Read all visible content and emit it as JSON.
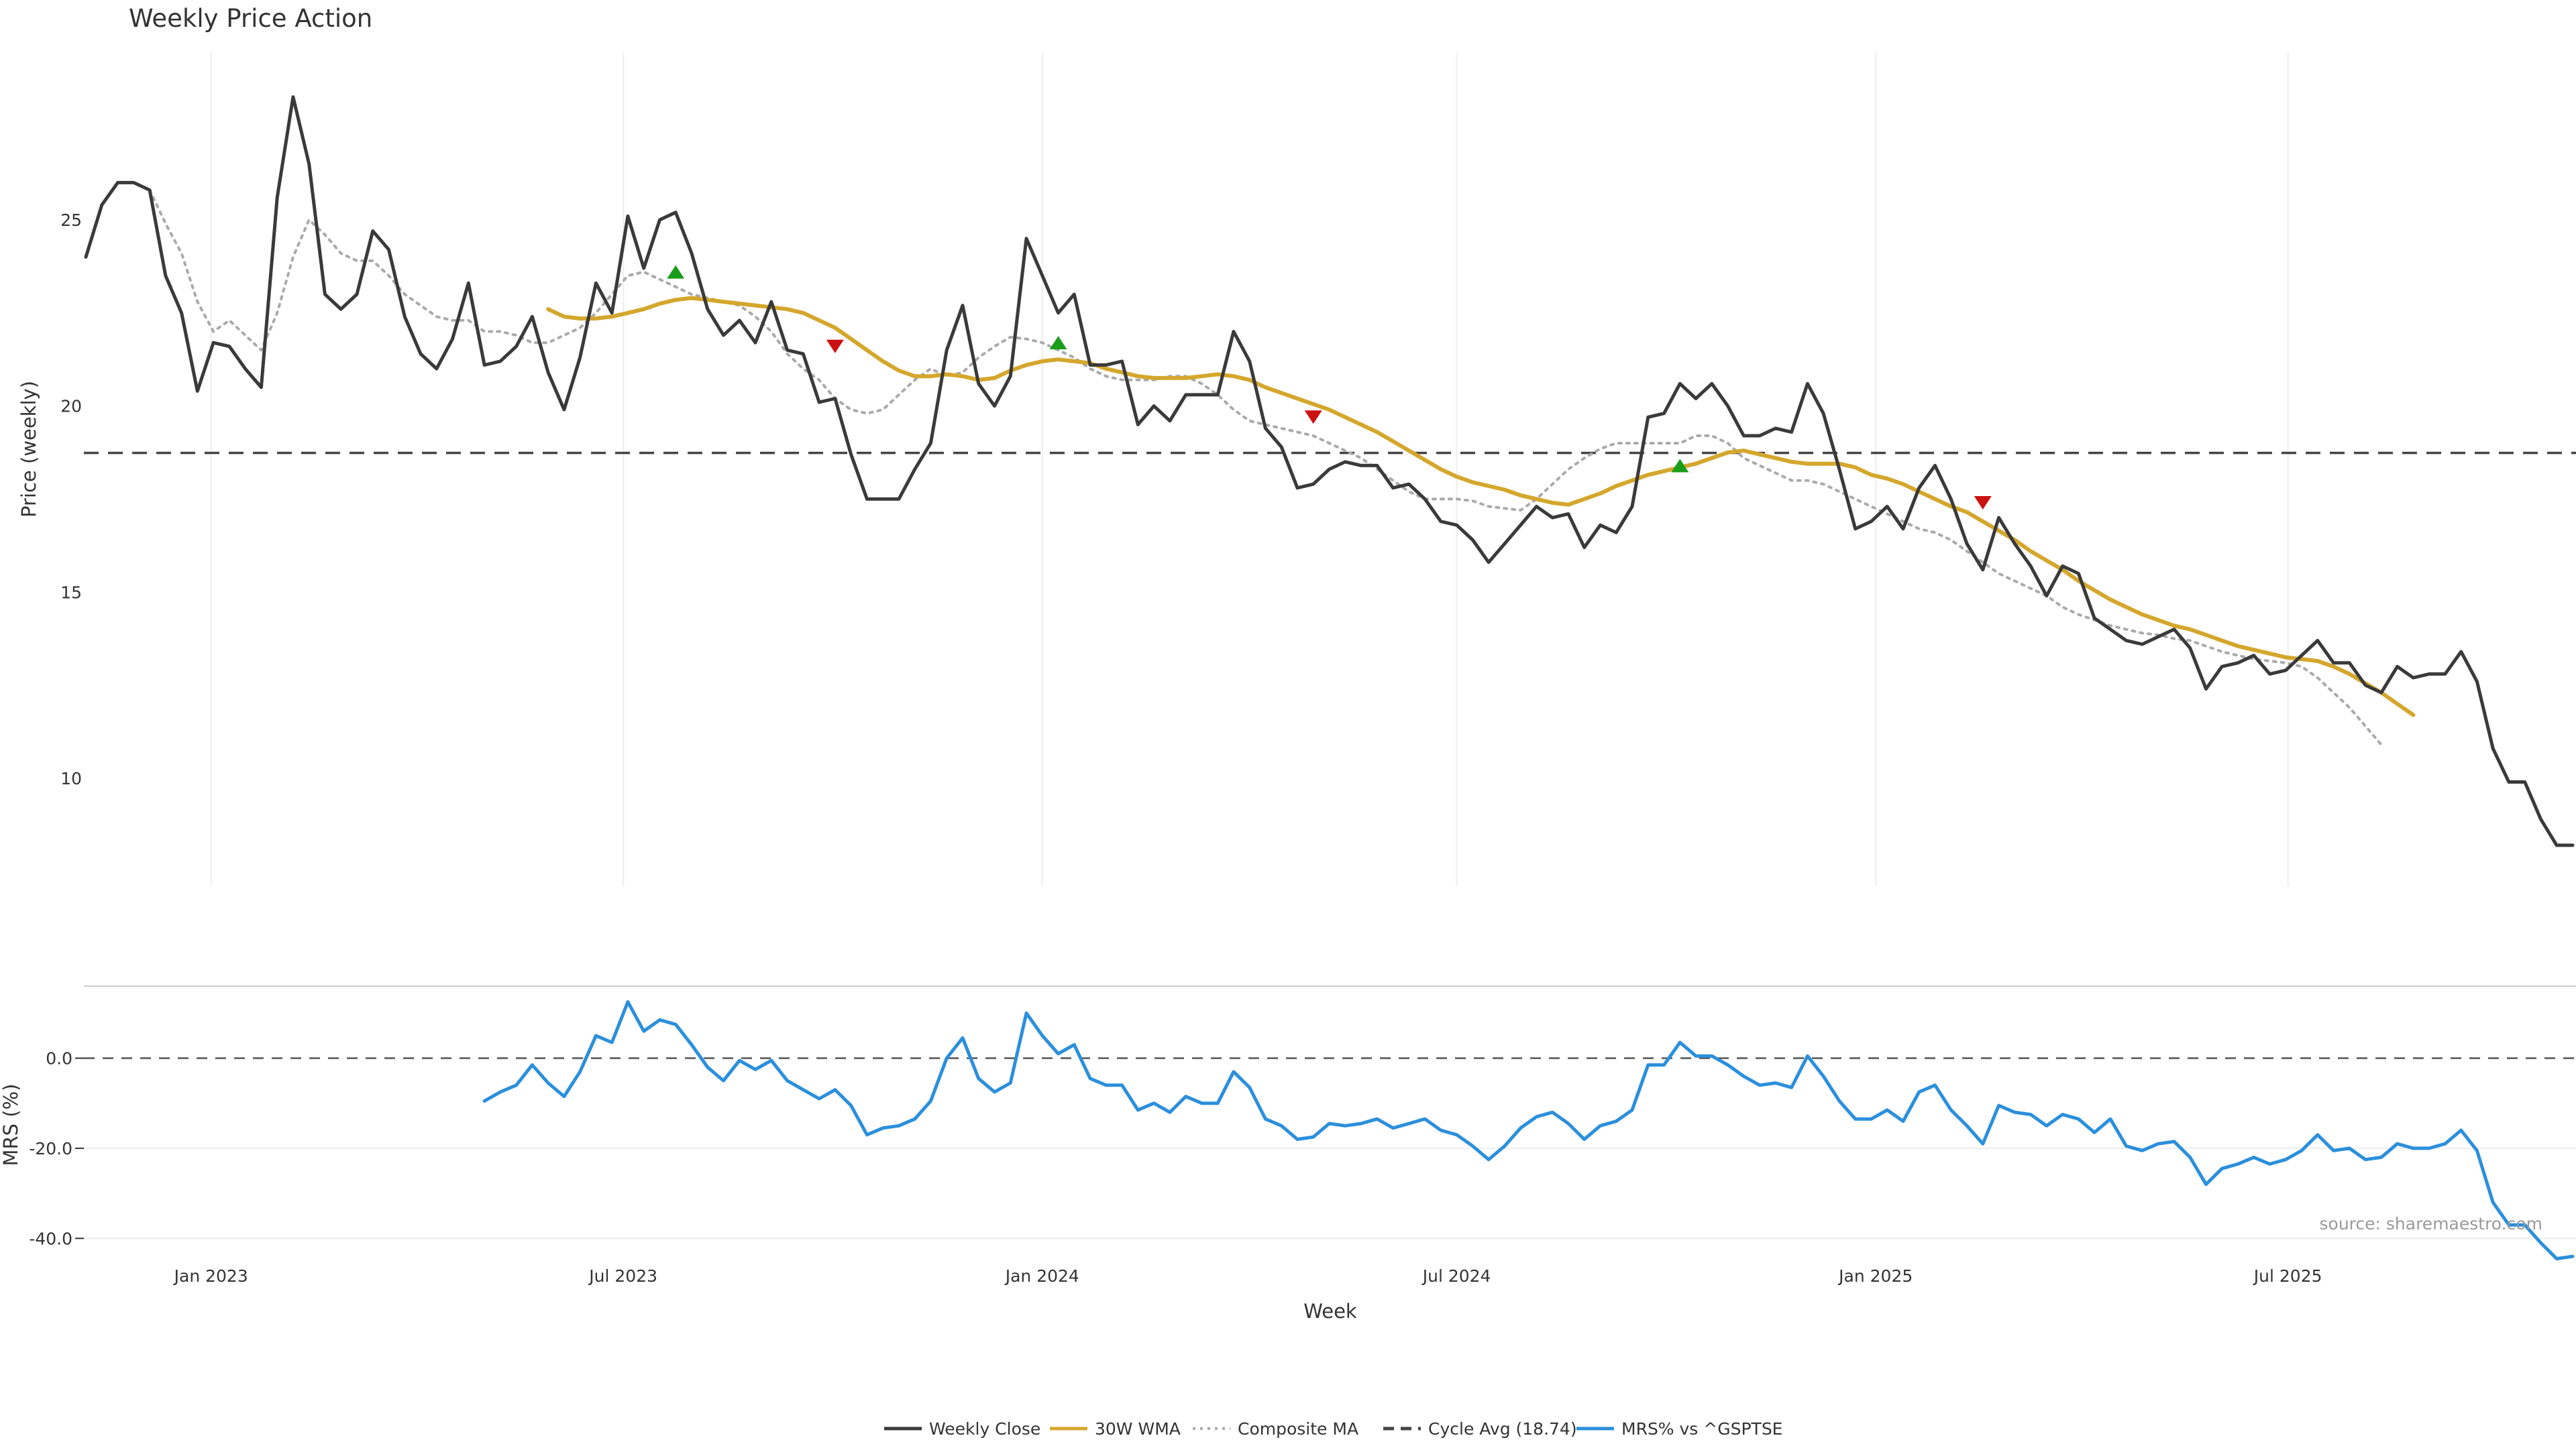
{
  "colors": {
    "close": "#3a3a3a",
    "wma": "#d4a72c",
    "composite": "#aaaaaa",
    "cycle": "#444444",
    "mrs": "#2b8fdc",
    "buy": "#1a9e1a",
    "sell": "#cc1111",
    "grid": "#eeeeee"
  },
  "chart_data": [
    {
      "type": "line",
      "title": "Weekly Price Action",
      "ylabel": "Price (weekly)",
      "xlabel": "",
      "x_start": "2022-11-07",
      "x_step_days": 7,
      "ylim": [
        7.1,
        29.5
      ],
      "xticks": [
        {
          "date": "2023-01-01",
          "label": "Jan 2023"
        },
        {
          "date": "2023-07-01",
          "label": "Jul 2023"
        },
        {
          "date": "2024-01-01",
          "label": "Jan 2024"
        },
        {
          "date": "2024-07-01",
          "label": "Jul 2024"
        },
        {
          "date": "2025-01-01",
          "label": "Jan 2025"
        },
        {
          "date": "2025-07-01",
          "label": "Jul 2025"
        }
      ],
      "yticks": [
        10,
        15,
        20,
        25
      ],
      "grid": true,
      "series": [
        {
          "name": "Weekly Close",
          "start_index": 0,
          "values": [
            24.0,
            25.4,
            26.0,
            26.0,
            25.8,
            23.5,
            22.5,
            20.4,
            21.7,
            21.6,
            21.0,
            20.5,
            25.6,
            28.3,
            26.5,
            23.0,
            22.6,
            23.0,
            24.7,
            24.2,
            22.4,
            21.4,
            21.0,
            21.8,
            23.3,
            21.1,
            21.2,
            21.6,
            22.4,
            20.9,
            19.9,
            21.3,
            23.3,
            22.5,
            25.1,
            23.7,
            25.0,
            25.2,
            24.1,
            22.6,
            21.9,
            22.3,
            21.7,
            22.8,
            21.5,
            21.4,
            20.1,
            20.2,
            18.7,
            17.5,
            17.5,
            17.5,
            18.3,
            19.0,
            21.5,
            22.7,
            20.6,
            20.0,
            20.8,
            24.5,
            23.5,
            22.5,
            23.0,
            21.1,
            21.1,
            21.2,
            19.5,
            20.0,
            19.6,
            20.3,
            20.3,
            20.3,
            22.0,
            21.2,
            19.4,
            18.9,
            17.8,
            17.9,
            18.3,
            18.5,
            18.4,
            18.4,
            17.8,
            17.9,
            17.5,
            16.9,
            16.8,
            16.4,
            15.8,
            16.3,
            16.8,
            17.3,
            17.0,
            17.1,
            16.2,
            16.8,
            16.6,
            17.3,
            19.7,
            19.8,
            20.6,
            20.2,
            20.6,
            20.0,
            19.2,
            19.2,
            19.4,
            19.3,
            20.6,
            19.8,
            18.3,
            16.7,
            16.9,
            17.3,
            16.7,
            17.8,
            18.4,
            17.5,
            16.3,
            15.6,
            17.0,
            16.3,
            15.7,
            14.9,
            15.7,
            15.5,
            14.3,
            14.0,
            13.7,
            13.6,
            13.8,
            14.0,
            13.5,
            12.4,
            13.0,
            13.1,
            13.3,
            12.8,
            12.9,
            13.3,
            13.7,
            13.1,
            13.1,
            12.5,
            12.3,
            13.0,
            12.7,
            12.8,
            12.8,
            13.4,
            12.6,
            10.8,
            9.9,
            9.9,
            8.9,
            8.2,
            8.2
          ]
        },
        {
          "name": "30W WMA",
          "start_index": 29,
          "values": [
            22.6,
            22.4,
            22.35,
            22.35,
            22.4,
            22.5,
            22.6,
            22.75,
            22.85,
            22.9,
            22.85,
            22.8,
            22.75,
            22.7,
            22.65,
            22.6,
            22.5,
            22.3,
            22.1,
            21.8,
            21.5,
            21.2,
            20.95,
            20.8,
            20.8,
            20.85,
            20.8,
            20.7,
            20.75,
            20.95,
            21.1,
            21.2,
            21.25,
            21.2,
            21.15,
            21.0,
            20.9,
            20.8,
            20.75,
            20.75,
            20.75,
            20.8,
            20.85,
            20.8,
            20.7,
            20.5,
            20.35,
            20.2,
            20.05,
            19.9,
            19.7,
            19.5,
            19.3,
            19.05,
            18.8,
            18.55,
            18.3,
            18.1,
            17.95,
            17.85,
            17.75,
            17.6,
            17.5,
            17.4,
            17.35,
            17.5,
            17.65,
            17.85,
            18.0,
            18.15,
            18.25,
            18.35,
            18.45,
            18.6,
            18.75,
            18.8,
            18.7,
            18.6,
            18.5,
            18.45,
            18.45,
            18.45,
            18.35,
            18.15,
            18.05,
            17.9,
            17.7,
            17.5,
            17.3,
            17.15,
            16.9,
            16.65,
            16.4,
            16.1,
            15.85,
            15.6,
            15.3,
            15.05,
            14.8,
            14.6,
            14.4,
            14.25,
            14.1,
            14.0,
            13.85,
            13.7,
            13.55,
            13.45,
            13.35,
            13.25,
            13.2,
            13.15,
            13.0,
            12.8,
            12.55,
            12.3,
            12.0,
            11.7
          ]
        },
        {
          "name": "Composite MA",
          "start_index": 4,
          "values": [
            25.8,
            24.9,
            24.1,
            22.8,
            22.0,
            22.3,
            21.9,
            21.5,
            22.5,
            24.0,
            25.0,
            24.6,
            24.1,
            23.9,
            23.9,
            23.5,
            23.0,
            22.7,
            22.4,
            22.3,
            22.3,
            22.0,
            22.0,
            21.9,
            21.7,
            21.7,
            21.9,
            22.1,
            22.5,
            23.0,
            23.5,
            23.6,
            23.4,
            23.2,
            23.0,
            22.9,
            22.8,
            22.7,
            22.4,
            22.0,
            21.4,
            21.0,
            20.7,
            20.2,
            19.9,
            19.8,
            19.9,
            20.3,
            20.7,
            21.0,
            20.8,
            20.9,
            21.3,
            21.6,
            21.85,
            21.8,
            21.7,
            21.5,
            21.3,
            21.0,
            20.8,
            20.7,
            20.7,
            20.7,
            20.8,
            20.8,
            20.6,
            20.3,
            19.9,
            19.6,
            19.5,
            19.4,
            19.3,
            19.2,
            19.0,
            18.8,
            18.6,
            18.3,
            18.0,
            17.7,
            17.5,
            17.5,
            17.5,
            17.45,
            17.3,
            17.25,
            17.2,
            17.5,
            17.9,
            18.3,
            18.6,
            18.85,
            19.0,
            19.0,
            19.0,
            19.0,
            19.0,
            19.2,
            19.2,
            19.0,
            18.6,
            18.4,
            18.2,
            18.0,
            18.0,
            17.9,
            17.7,
            17.5,
            17.3,
            17.1,
            16.9,
            16.7,
            16.6,
            16.4,
            16.1,
            15.8,
            15.5,
            15.3,
            15.1,
            14.9,
            14.6,
            14.4,
            14.25,
            14.1,
            14.0,
            13.9,
            13.85,
            13.75,
            13.7,
            13.55,
            13.4,
            13.3,
            13.2,
            13.15,
            13.1,
            13.0,
            12.7,
            12.3,
            11.9,
            11.4,
            10.9
          ]
        },
        {
          "name": "Cycle Avg (18.74)",
          "constant": 18.74
        }
      ],
      "signals": [
        {
          "type": "buy",
          "index": 37,
          "value": 23.6
        },
        {
          "type": "sell",
          "index": 47,
          "value": 21.6
        },
        {
          "type": "buy",
          "index": 61,
          "value": 21.7
        },
        {
          "type": "sell",
          "index": 77,
          "value": 19.7
        },
        {
          "type": "buy",
          "index": 100,
          "value": 18.4
        },
        {
          "type": "sell",
          "index": 119,
          "value": 17.4
        }
      ]
    },
    {
      "type": "line",
      "title": "",
      "ylabel": "MRS (%)",
      "xlabel": "Week",
      "x_start": "2022-11-07",
      "x_step_days": 7,
      "ylim": [
        -46.5,
        16
      ],
      "yticks": [
        {
          "value": 0,
          "label": "0.0"
        },
        {
          "value": -20,
          "label": "-20.0"
        },
        {
          "value": -40,
          "label": "-40.0"
        }
      ],
      "grid": true,
      "zero_line": 0,
      "series": [
        {
          "name": "MRS% vs ^GSPTSE",
          "start_index": 25,
          "values": [
            -9.5,
            -7.5,
            -6,
            -1.5,
            -5.5,
            -8.5,
            -3,
            5,
            3.5,
            12.5,
            6,
            8.5,
            7.5,
            3,
            -2,
            -5,
            -0.5,
            -2.5,
            -0.5,
            -5,
            -7,
            -9,
            -7,
            -10.5,
            -17,
            -15.5,
            -15,
            -13.5,
            -9.5,
            0,
            4.5,
            -4.5,
            -7.5,
            -5.5,
            10,
            5,
            1,
            3,
            -4.5,
            -6,
            -6,
            -11.5,
            -10,
            -12,
            -8.5,
            -10,
            -10,
            -3,
            -6.5,
            -13.5,
            -15,
            -18,
            -17.5,
            -14.5,
            -15,
            -14.5,
            -13.5,
            -15.5,
            -14.5,
            -13.5,
            -16,
            -17,
            -19.5,
            -22.5,
            -19.5,
            -15.5,
            -13,
            -12,
            -14.5,
            -18,
            -15,
            -14,
            -11.5,
            -1.5,
            -1.5,
            3.5,
            0.5,
            0.5,
            -1.5,
            -4,
            -6,
            -5.5,
            -6.5,
            0.5,
            -4,
            -9.5,
            -13.5,
            -13.5,
            -11.5,
            -14,
            -7.5,
            -6,
            -11.5,
            -15,
            -19,
            -10.5,
            -12,
            -12.5,
            -15,
            -12.5,
            -13.5,
            -16.5,
            -13.5,
            -19.5,
            -20.5,
            -19,
            -18.5,
            -22,
            -28,
            -24.5,
            -23.5,
            -22,
            -23.5,
            -22.5,
            -20.5,
            -17,
            -20.5,
            -20,
            -22.5,
            -22,
            -19,
            -20,
            -20,
            -19,
            -16,
            -20.5,
            -32,
            -37,
            -37,
            -41,
            -44.5,
            -44
          ]
        }
      ]
    }
  ],
  "main_chart": {
    "title": "Weekly Price Action",
    "ylabel": "Price (weekly)",
    "yticks": [
      "10",
      "15",
      "20",
      "25"
    ]
  },
  "mrs_chart": {
    "ylabel": "MRS (%)",
    "yticks": [
      "0.0",
      "-20.0",
      "-40.0"
    ]
  },
  "x_axis": {
    "title": "Week",
    "ticks": [
      "Jan 2023",
      "Jul 2023",
      "Jan 2024",
      "Jul 2024",
      "Jan 2025",
      "Jul 2025"
    ]
  },
  "source": "source: sharemaestro.com",
  "legend": [
    {
      "label": "Weekly Close",
      "style": "solid",
      "color": "#3a3a3a"
    },
    {
      "label": "30W WMA",
      "style": "solid",
      "color": "#d4a72c"
    },
    {
      "label": "Composite MA",
      "style": "dotted",
      "color": "#aaaaaa"
    },
    {
      "label": "Cycle Avg (18.74)",
      "style": "dashed",
      "color": "#444444"
    },
    {
      "label": "MRS% vs ^GSPTSE",
      "style": "solid",
      "color": "#2b8fdc"
    }
  ]
}
